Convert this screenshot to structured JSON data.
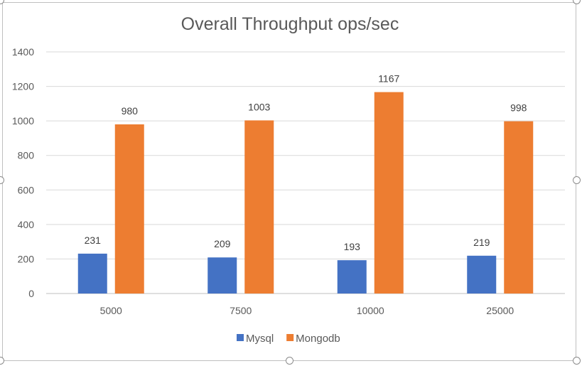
{
  "chart_data": {
    "type": "bar",
    "title": "Overall Throughput ops/sec",
    "categories": [
      "5000",
      "7500",
      "10000",
      "25000"
    ],
    "series": [
      {
        "name": "Mysql",
        "values": [
          231,
          209,
          193,
          219
        ],
        "color": "#4472c4"
      },
      {
        "name": "Mongodb",
        "values": [
          980,
          1003,
          1167,
          998
        ],
        "color": "#ed7d31"
      }
    ],
    "ylim": [
      0,
      1400
    ],
    "yticks": [
      0,
      200,
      400,
      600,
      800,
      1000,
      1200,
      1400
    ],
    "grid": true,
    "legend": "bottom"
  }
}
